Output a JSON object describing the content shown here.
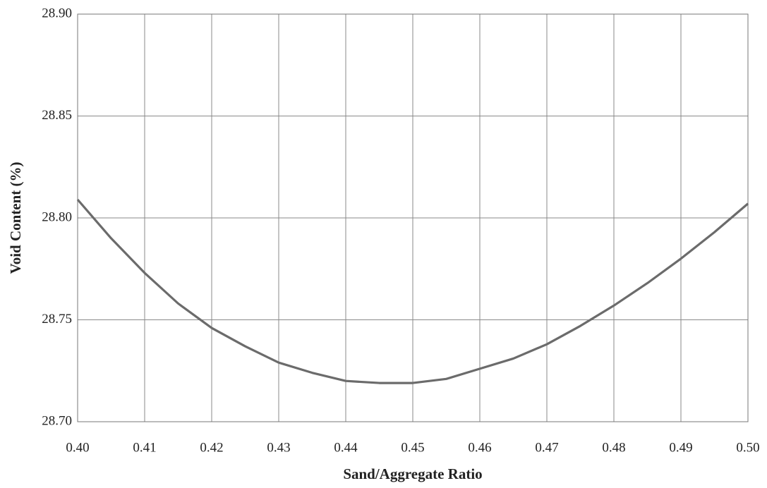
{
  "chart_data": {
    "type": "line",
    "x_label": "Sand/Aggregate Ratio",
    "y_label": "Void Content (%)",
    "x": [
      0.4,
      0.405,
      0.41,
      0.415,
      0.42,
      0.425,
      0.43,
      0.435,
      0.44,
      0.445,
      0.45,
      0.455,
      0.46,
      0.465,
      0.47,
      0.475,
      0.48,
      0.485,
      0.49,
      0.495,
      0.5
    ],
    "series": [
      {
        "color": "#6b6b6b",
        "values": [
          28.809,
          28.79,
          28.773,
          28.758,
          28.746,
          28.737,
          28.729,
          28.724,
          28.72,
          28.719,
          28.719,
          28.721,
          28.726,
          28.731,
          28.738,
          28.747,
          28.757,
          28.768,
          28.78,
          28.793,
          28.807
        ]
      }
    ],
    "xlim": [
      0.4,
      0.5
    ],
    "ylim": [
      28.7,
      28.9
    ],
    "xticks": [
      {
        "value": 0.4,
        "label": "0.40"
      },
      {
        "value": 0.41,
        "label": "0.41"
      },
      {
        "value": 0.42,
        "label": "0.42"
      },
      {
        "value": 0.43,
        "label": "0.43"
      },
      {
        "value": 0.44,
        "label": "0.44"
      },
      {
        "value": 0.45,
        "label": "0.45"
      },
      {
        "value": 0.46,
        "label": "0.46"
      },
      {
        "value": 0.47,
        "label": "0.47"
      },
      {
        "value": 0.48,
        "label": "0.48"
      },
      {
        "value": 0.49,
        "label": "0.49"
      },
      {
        "value": 0.5,
        "label": "0.50"
      }
    ],
    "yticks": [
      {
        "value": 28.7,
        "label": "28.70"
      },
      {
        "value": 28.75,
        "label": "28.75"
      },
      {
        "value": 28.8,
        "label": "28.80"
      },
      {
        "value": 28.85,
        "label": "28.85"
      },
      {
        "value": 28.9,
        "label": "28.90"
      }
    ],
    "grid": true
  }
}
